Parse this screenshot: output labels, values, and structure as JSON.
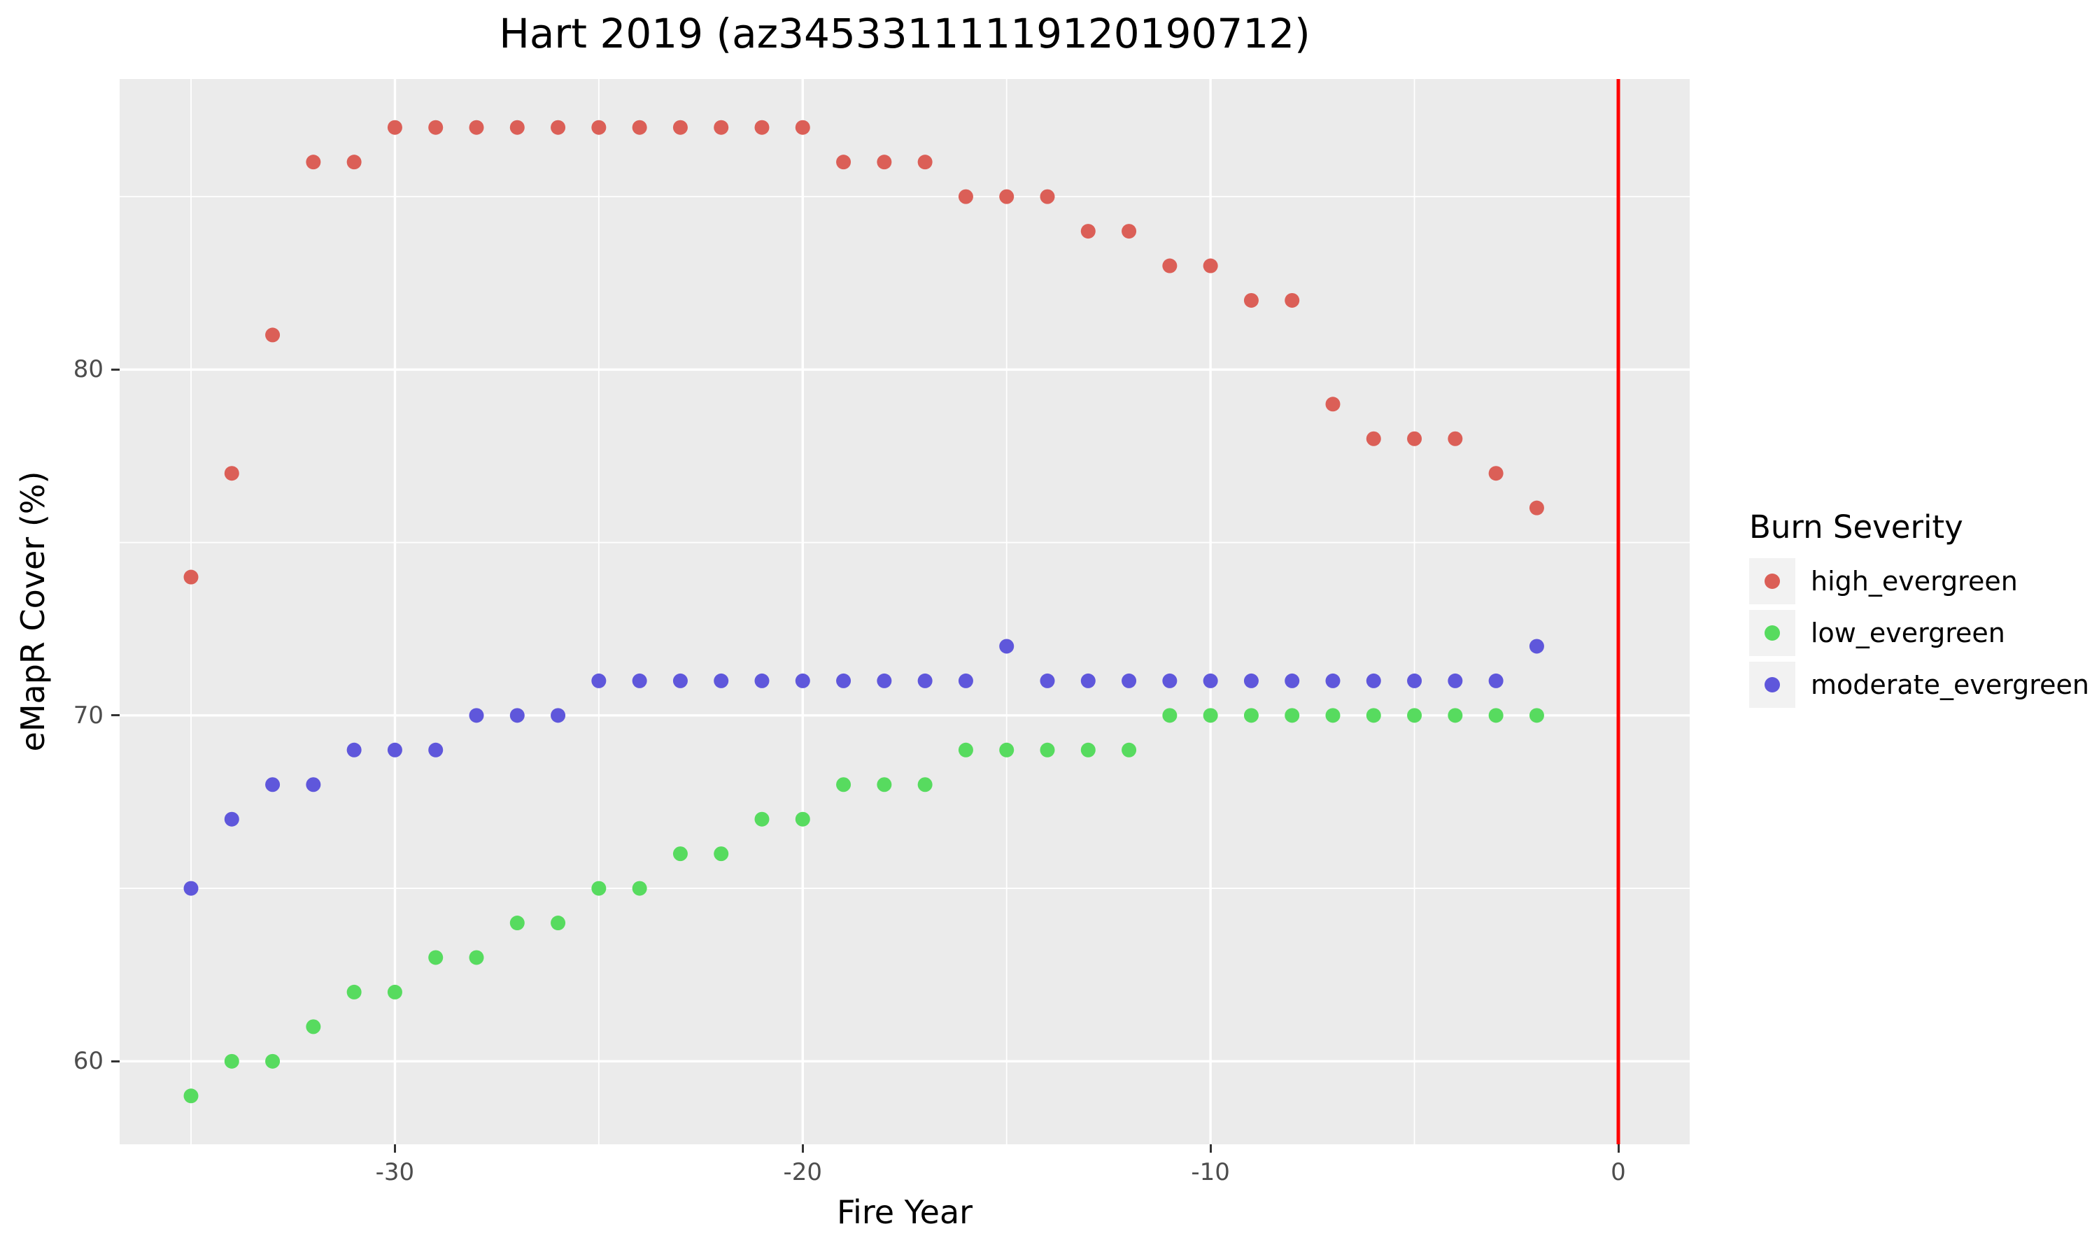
{
  "chart_data": {
    "type": "scatter",
    "title": "Hart 2019 (az34533111119120190712)",
    "xlabel": "Fire Year",
    "ylabel": "eMapR Cover (%)",
    "xlim": [
      -36.75,
      1.75
    ],
    "ylim": [
      57.6,
      88.4
    ],
    "x_major_ticks": [
      -30,
      -20,
      -10,
      0
    ],
    "x_minor_gridlines": [
      -35,
      -25,
      -15,
      -5
    ],
    "y_major_ticks": [
      60,
      70,
      80
    ],
    "y_minor_gridlines": [
      65,
      75,
      85
    ],
    "grid": "on",
    "legend_title": "Burn Severity",
    "legend_position": "right",
    "vline": {
      "x": 0,
      "color": "#FF0000"
    },
    "x": [
      -35,
      -34,
      -33,
      -32,
      -31,
      -30,
      -29,
      -28,
      -27,
      -26,
      -25,
      -24,
      -23,
      -22,
      -21,
      -20,
      -19,
      -18,
      -17,
      -16,
      -15,
      -14,
      -13,
      -12,
      -11,
      -10,
      -9,
      -8,
      -7,
      -6,
      -5,
      -4,
      -3,
      -2
    ],
    "series": [
      {
        "name": "high_evergreen",
        "color": "#DB5F57",
        "values": [
          74,
          77,
          81,
          86,
          86,
          87,
          87,
          87,
          87,
          87,
          87,
          87,
          87,
          87,
          87,
          87,
          86,
          86,
          86,
          85,
          85,
          85,
          84,
          84,
          83,
          83,
          82,
          82,
          79,
          78,
          78,
          78,
          77,
          76
        ]
      },
      {
        "name": "low_evergreen",
        "color": "#57DB5F",
        "values": [
          59,
          60,
          60,
          61,
          62,
          62,
          63,
          63,
          64,
          64,
          65,
          65,
          66,
          66,
          67,
          67,
          68,
          68,
          68,
          69,
          69,
          69,
          69,
          69,
          70,
          70,
          70,
          70,
          70,
          70,
          70,
          70,
          70,
          70
        ]
      },
      {
        "name": "moderate_evergreen",
        "color": "#5F57DB",
        "values": [
          65,
          67,
          68,
          68,
          69,
          69,
          69,
          70,
          70,
          70,
          71,
          71,
          71,
          71,
          71,
          71,
          71,
          71,
          71,
          71,
          72,
          71,
          71,
          71,
          71,
          71,
          71,
          71,
          71,
          71,
          71,
          71,
          71,
          72
        ]
      }
    ]
  },
  "style": {
    "panel_bg": "#EBEBEB",
    "grid_color": "#FFFFFF",
    "axis_text_color": "#4D4D4D",
    "tick_mark_color": "#333333",
    "legend_key_bg": "#F2F2F2",
    "title_color": "#000000"
  }
}
